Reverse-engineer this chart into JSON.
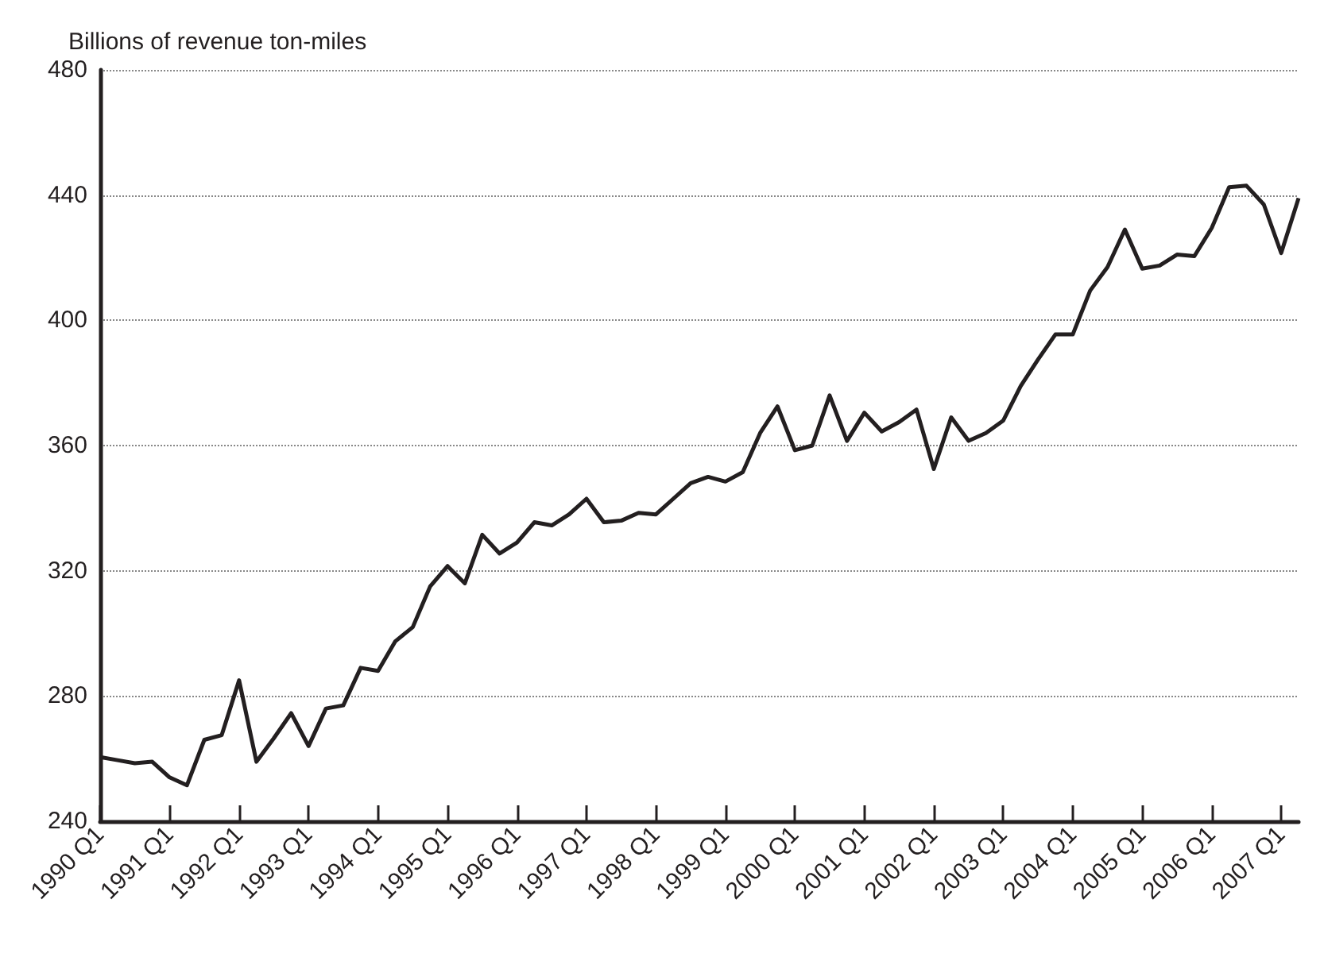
{
  "chart_data": {
    "type": "line",
    "ylabel": "Billions of revenue ton-miles",
    "categories": [
      "1990 Q1",
      null,
      null,
      null,
      "1991 Q1",
      null,
      null,
      null,
      "1992 Q1",
      null,
      null,
      null,
      "1993 Q1",
      null,
      null,
      null,
      "1994 Q1",
      null,
      null,
      null,
      "1995 Q1",
      null,
      null,
      null,
      "1996 Q1",
      null,
      null,
      null,
      "1997 Q1",
      null,
      null,
      null,
      "1998 Q1",
      null,
      null,
      null,
      "1999 Q1",
      null,
      null,
      null,
      "2000 Q1",
      null,
      null,
      null,
      "2001 Q1",
      null,
      null,
      null,
      "2002 Q1",
      null,
      null,
      null,
      "2003 Q1",
      null,
      null,
      null,
      "2004 Q1",
      null,
      null,
      null,
      "2005 Q1",
      null,
      null,
      null,
      "2006 Q1",
      null,
      null,
      null,
      "2007 Q1",
      null
    ],
    "series": [
      {
        "color": "#231f20",
        "values": [
          260.5,
          259.5,
          258.5,
          259,
          254,
          251.5,
          266,
          267.5,
          285,
          259,
          266.5,
          274.5,
          264,
          276,
          277,
          289,
          288,
          297.5,
          302,
          315,
          321.5,
          316,
          331.5,
          325.5,
          329,
          335.5,
          334.5,
          338,
          343,
          335.5,
          336,
          338.5,
          338,
          343,
          348,
          350,
          348.5,
          351.5,
          364,
          372.5,
          358.5,
          360,
          376,
          361.5,
          370.5,
          364.5,
          367.5,
          371.5,
          352.5,
          369,
          361.5,
          364,
          368,
          379,
          387.5,
          395.5,
          395.5,
          409.5,
          417,
          429,
          416.5,
          417.5,
          421,
          420.5,
          429.5,
          442.5,
          443,
          437,
          421.5,
          439
        ]
      }
    ],
    "ylim": [
      240,
      480
    ],
    "yticks": [
      240,
      280,
      320,
      360,
      400,
      440,
      480
    ],
    "grid": "y",
    "marker": "none",
    "line_style": "solid"
  }
}
